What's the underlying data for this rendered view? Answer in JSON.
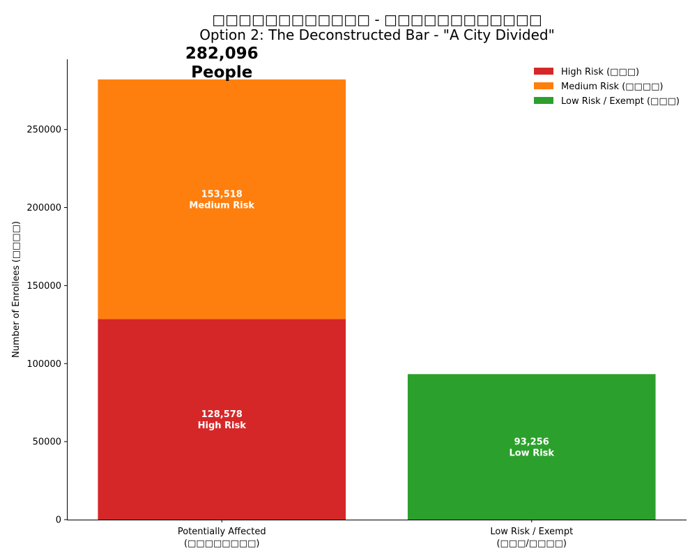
{
  "chart_data": {
    "type": "bar",
    "title": "□□□□□□□□□□□□ - □□□□□□□□□□□□",
    "subtitle": "Option 2: The Deconstructed Bar - \"A City Divided\"",
    "xlabel": "",
    "ylabel": "Number of Enrollees (□□□□)",
    "ylim": [
      0,
      295000
    ],
    "yticks": [
      0,
      50000,
      100000,
      150000,
      200000,
      250000
    ],
    "grid": false,
    "legend_position": "top-right",
    "categories": [
      {
        "line1": "Potentially Affected",
        "line2": "(□□□□□□□□)"
      },
      {
        "line1": "Low Risk / Exempt",
        "line2": "(□□□/□□□□)"
      }
    ],
    "series": [
      {
        "name": "High Risk (□□□)",
        "color": "#d62728",
        "values": [
          128578,
          0
        ],
        "label_line2": "High Risk"
      },
      {
        "name": "Medium Risk (□□□□)",
        "color": "#ff7f0e",
        "values": [
          153518,
          0
        ],
        "label_line2": "Medium Risk"
      },
      {
        "name": "Low Risk / Exempt (□□□)",
        "color": "#2ca02c",
        "values": [
          0,
          93256
        ],
        "label_line2": "Low Risk"
      }
    ],
    "total_annotation": {
      "category_index": 0,
      "value_text": "282,096",
      "unit_text": "People"
    }
  }
}
